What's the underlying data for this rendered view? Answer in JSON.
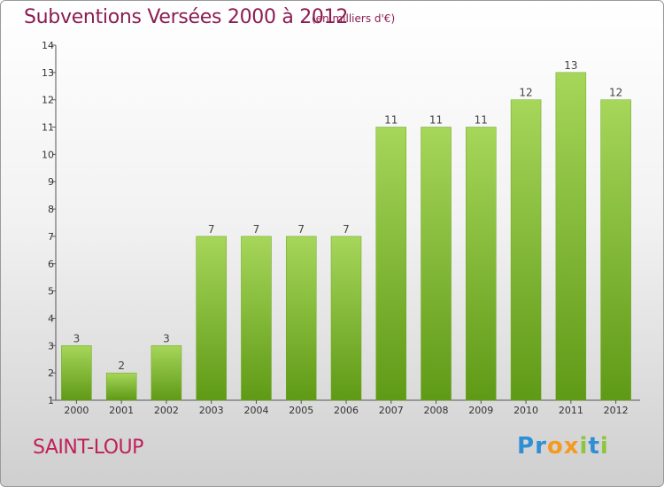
{
  "header": {
    "title": "Subventions Versées 2000 à 2012",
    "subtitle": "(en milliers d'€)"
  },
  "footer": {
    "commune": "SAINT-LOUP",
    "logo_letters": [
      "P",
      "r",
      "o",
      "x",
      "i",
      "t",
      "i"
    ]
  },
  "colors": {
    "title": "#8c1d52",
    "commune": "#c0205a",
    "bar_top": "#a6d65a",
    "bar_bottom": "#5f9a16",
    "logo": [
      "#2e8fd6",
      "#2e8fd6",
      "#f39a1f",
      "#f39a1f",
      "#8cc63e",
      "#2e8fd6",
      "#8cc63e"
    ]
  },
  "chart_data": {
    "type": "bar",
    "title": "Subventions Versées 2000 à 2012",
    "subtitle": "(en milliers d'€)",
    "categories": [
      "2000",
      "2001",
      "2002",
      "2003",
      "2004",
      "2005",
      "2006",
      "2007",
      "2008",
      "2009",
      "2010",
      "2011",
      "2012"
    ],
    "values": [
      3,
      2,
      3,
      7,
      7,
      7,
      7,
      11,
      11,
      11,
      12,
      13,
      12
    ],
    "ylim": [
      1,
      14
    ],
    "yticks": [
      1,
      2,
      3,
      4,
      5,
      6,
      7,
      8,
      9,
      10,
      11,
      12,
      13,
      14
    ],
    "grid": false,
    "legend": "none"
  }
}
